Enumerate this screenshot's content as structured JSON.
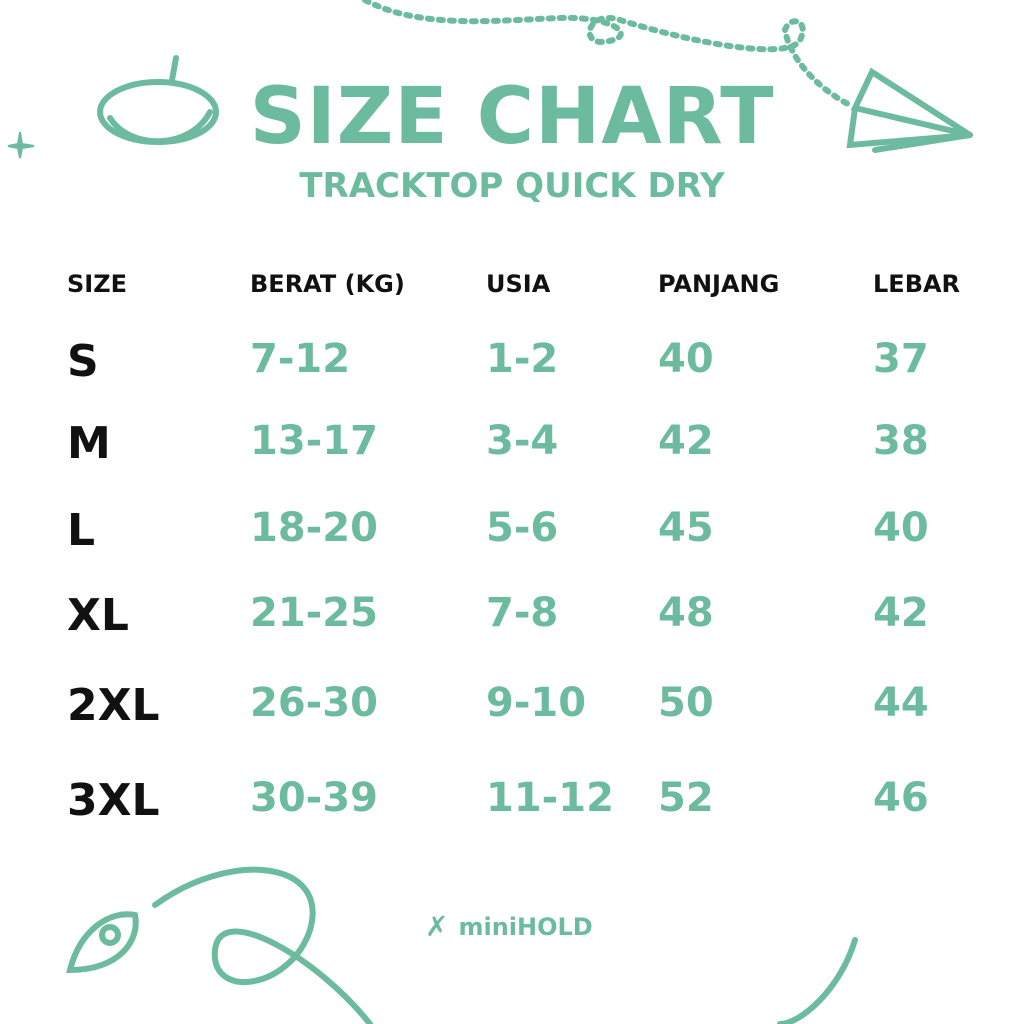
{
  "header": {
    "title": "SIZE CHART",
    "subtitle": "TRACKTOP QUICK DRY"
  },
  "table": {
    "columns": [
      "SIZE",
      "BERAT (KG)",
      "USIA",
      "PANJANG",
      "LEBAR"
    ],
    "rows": [
      [
        "S",
        "7-12",
        "1-2",
        "40",
        "37"
      ],
      [
        "M",
        "13-17",
        "3-4",
        "42",
        "38"
      ],
      [
        "L",
        "18-20",
        "5-6",
        "45",
        "40"
      ],
      [
        "XL",
        "21-25",
        "7-8",
        "48",
        "42"
      ],
      [
        "2XL",
        "26-30",
        "9-10",
        "50",
        "44"
      ],
      [
        "3XL",
        "30-39",
        "11-12",
        "52",
        "46"
      ]
    ]
  },
  "brand": {
    "name": "miniHOLD"
  },
  "colors": {
    "accent": "#6dbb9f",
    "text": "#111111",
    "background": "#ffffff"
  },
  "icons": [
    "planet-icon",
    "sparkle-icon",
    "paper-plane-icon",
    "rocket-icon",
    "brand-logo-icon"
  ]
}
